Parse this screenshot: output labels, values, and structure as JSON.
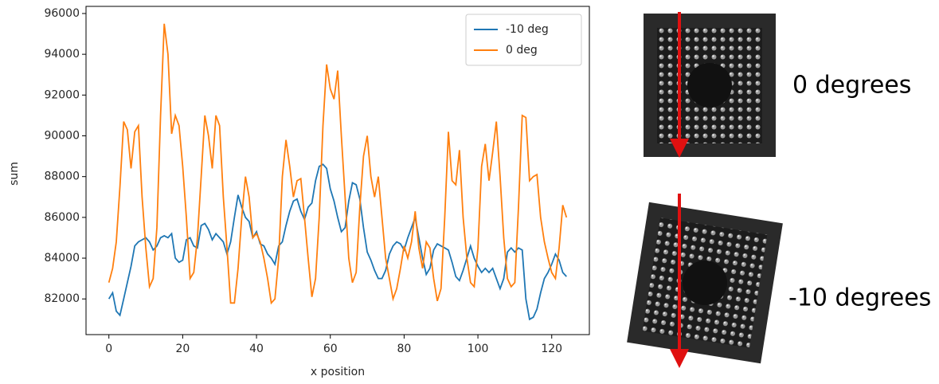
{
  "chart_data": {
    "type": "line",
    "x_label": "x position",
    "y_label": "sum",
    "x": [
      0,
      1,
      2,
      3,
      4,
      5,
      6,
      7,
      8,
      9,
      10,
      11,
      12,
      13,
      14,
      15,
      16,
      17,
      18,
      19,
      20,
      21,
      22,
      23,
      24,
      25,
      26,
      27,
      28,
      29,
      30,
      31,
      32,
      33,
      34,
      35,
      36,
      37,
      38,
      39,
      40,
      41,
      42,
      43,
      44,
      45,
      46,
      47,
      48,
      49,
      50,
      51,
      52,
      53,
      54,
      55,
      56,
      57,
      58,
      59,
      60,
      61,
      62,
      63,
      64,
      65,
      66,
      67,
      68,
      69,
      70,
      71,
      72,
      73,
      74,
      75,
      76,
      77,
      78,
      79,
      80,
      81,
      82,
      83,
      84,
      85,
      86,
      87,
      88,
      89,
      90,
      91,
      92,
      93,
      94,
      95,
      96,
      97,
      98,
      99,
      100,
      101,
      102,
      103,
      104,
      105,
      106,
      107,
      108,
      109,
      110,
      111,
      112,
      113,
      114,
      115,
      116,
      117,
      118,
      119,
      120,
      121,
      122,
      123,
      124
    ],
    "series": [
      {
        "name": "-10 deg",
        "color": "#1f77b4",
        "values": [
          82000,
          82300,
          81400,
          81200,
          82000,
          82800,
          83600,
          84600,
          84800,
          84900,
          85000,
          84800,
          84400,
          84600,
          85000,
          85100,
          85000,
          85200,
          84000,
          83800,
          83900,
          84900,
          85000,
          84600,
          84500,
          85600,
          85700,
          85400,
          84900,
          85200,
          85000,
          84800,
          84200,
          84800,
          86000,
          87100,
          86500,
          86000,
          85800,
          85000,
          85300,
          84700,
          84600,
          84200,
          84000,
          83700,
          84600,
          84800,
          85600,
          86300,
          86800,
          86900,
          86300,
          85900,
          86500,
          86700,
          87800,
          88500,
          88600,
          88400,
          87400,
          86800,
          86000,
          85300,
          85500,
          86800,
          87700,
          87600,
          86900,
          85500,
          84300,
          83900,
          83400,
          83000,
          83000,
          83400,
          84200,
          84600,
          84800,
          84700,
          84400,
          85000,
          85500,
          86000,
          85000,
          84000,
          83200,
          83500,
          84400,
          84700,
          84600,
          84500,
          84400,
          83800,
          83100,
          82900,
          83400,
          84000,
          84600,
          84000,
          83600,
          83300,
          83500,
          83300,
          83500,
          83000,
          82500,
          83000,
          84300,
          84500,
          84300,
          84500,
          84400,
          82000,
          81000,
          81100,
          81500,
          82300,
          83000,
          83300,
          83700,
          84200,
          83900,
          83300,
          83100
        ]
      },
      {
        "name": "0 deg",
        "color": "#ff7f0e",
        "values": [
          82800,
          83500,
          84800,
          87500,
          90700,
          90300,
          88400,
          90200,
          90500,
          87000,
          84500,
          82600,
          83000,
          85500,
          91000,
          95500,
          94000,
          90100,
          91000,
          90500,
          88500,
          86000,
          83000,
          83300,
          85000,
          88000,
          91000,
          90000,
          88400,
          91000,
          90500,
          87000,
          84500,
          81800,
          81800,
          83500,
          86000,
          88000,
          87000,
          85000,
          85200,
          84800,
          84000,
          83000,
          81800,
          82000,
          84000,
          88000,
          89800,
          88500,
          87000,
          87800,
          87900,
          86000,
          84000,
          82100,
          83000,
          86000,
          90500,
          93500,
          92300,
          91800,
          93200,
          90000,
          87000,
          84000,
          82800,
          83300,
          86500,
          89000,
          90000,
          88000,
          87000,
          88000,
          86000,
          84000,
          83000,
          82000,
          82500,
          83500,
          84600,
          84000,
          84800,
          86300,
          84500,
          83500,
          84800,
          84500,
          83000,
          81900,
          82500,
          86000,
          90200,
          87800,
          87600,
          89300,
          86000,
          84000,
          82800,
          82600,
          84500,
          88500,
          89600,
          87800,
          89200,
          90700,
          88000,
          85000,
          83000,
          82600,
          82800,
          86500,
          91000,
          90900,
          87800,
          88000,
          88100,
          86000,
          84800,
          84000,
          83300,
          83000,
          84500,
          86600,
          86000
        ]
      }
    ],
    "xlim": [
      -6.2,
      130.2
    ],
    "xticks": [
      0,
      20,
      40,
      60,
      80,
      100,
      120
    ],
    "ylim": [
      80250,
      96350
    ],
    "yticks": [
      82000,
      84000,
      86000,
      88000,
      90000,
      92000,
      94000,
      96000
    ],
    "legend": "upper right",
    "annotations": [
      "0 degrees",
      "-10 degrees"
    ]
  }
}
